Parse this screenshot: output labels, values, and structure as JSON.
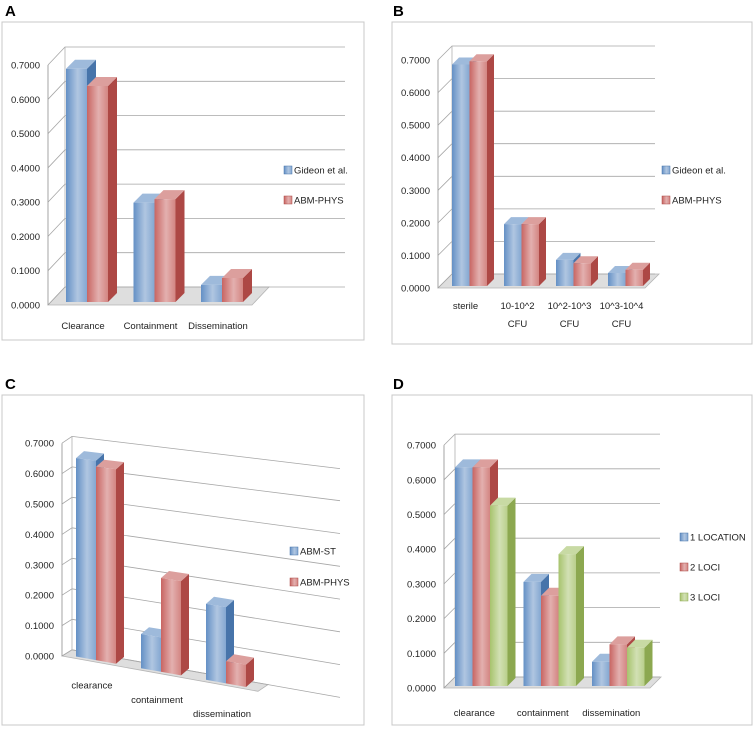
{
  "chart_data": [
    {
      "panel": "A",
      "type": "bar",
      "title": "",
      "xlabel": "",
      "ylabel": "",
      "categories": [
        "Clearance",
        "Containment",
        "Dissemination"
      ],
      "series": [
        {
          "name": "Gideon et al.",
          "values": [
            0.68,
            0.29,
            0.05
          ],
          "color": "#4f81bd"
        },
        {
          "name": "ABM-PHYS",
          "values": [
            0.63,
            0.3,
            0.07
          ],
          "color": "#c0504d"
        }
      ],
      "ylim": [
        0,
        0.7
      ],
      "yticks": [
        "0.0000",
        "0.1000",
        "0.2000",
        "0.3000",
        "0.4000",
        "0.5000",
        "0.6000",
        "0.7000"
      ],
      "legend": "right"
    },
    {
      "panel": "B",
      "type": "bar",
      "title": "",
      "xlabel": "",
      "ylabel": "",
      "categories": [
        "sterile",
        "10-10^2 CFU",
        "10^2-10^3 CFU",
        "10^3-10^4 CFU"
      ],
      "series": [
        {
          "name": "Gideon et al.",
          "values": [
            0.68,
            0.19,
            0.08,
            0.04
          ],
          "color": "#4f81bd"
        },
        {
          "name": "ABM-PHYS",
          "values": [
            0.69,
            0.19,
            0.07,
            0.05
          ],
          "color": "#c0504d"
        }
      ],
      "ylim": [
        0,
        0.7
      ],
      "yticks": [
        "0.0000",
        "0.1000",
        "0.2000",
        "0.3000",
        "0.4000",
        "0.5000",
        "0.6000",
        "0.7000"
      ],
      "legend": "right"
    },
    {
      "panel": "C",
      "type": "bar",
      "title": "",
      "xlabel": "",
      "ylabel": "",
      "categories": [
        "clearance",
        "containment",
        "dissemination"
      ],
      "series": [
        {
          "name": "ABM-ST",
          "values": [
            0.65,
            0.11,
            0.24
          ],
          "color": "#4f81bd"
        },
        {
          "name": "ABM-PHYS",
          "values": [
            0.63,
            0.3,
            0.07
          ],
          "color": "#c0504d"
        }
      ],
      "ylim": [
        0,
        0.7
      ],
      "yticks": [
        "0.0000",
        "0.1000",
        "0.2000",
        "0.3000",
        "0.4000",
        "0.5000",
        "0.6000",
        "0.7000"
      ],
      "legend": "right"
    },
    {
      "panel": "D",
      "type": "bar",
      "title": "",
      "xlabel": "",
      "ylabel": "",
      "categories": [
        "clearance",
        "containment",
        "dissemination"
      ],
      "series": [
        {
          "name": "1 LOCATION",
          "values": [
            0.63,
            0.3,
            0.07
          ],
          "color": "#4f81bd"
        },
        {
          "name": "2 LOCI",
          "values": [
            0.63,
            0.26,
            0.12
          ],
          "color": "#c0504d"
        },
        {
          "name": "3 LOCI",
          "values": [
            0.52,
            0.38,
            0.11
          ],
          "color": "#9bbb59"
        }
      ],
      "ylim": [
        0,
        0.7
      ],
      "yticks": [
        "0.0000",
        "0.1000",
        "0.2000",
        "0.3000",
        "0.4000",
        "0.5000",
        "0.6000",
        "0.7000"
      ],
      "legend": "right"
    }
  ]
}
